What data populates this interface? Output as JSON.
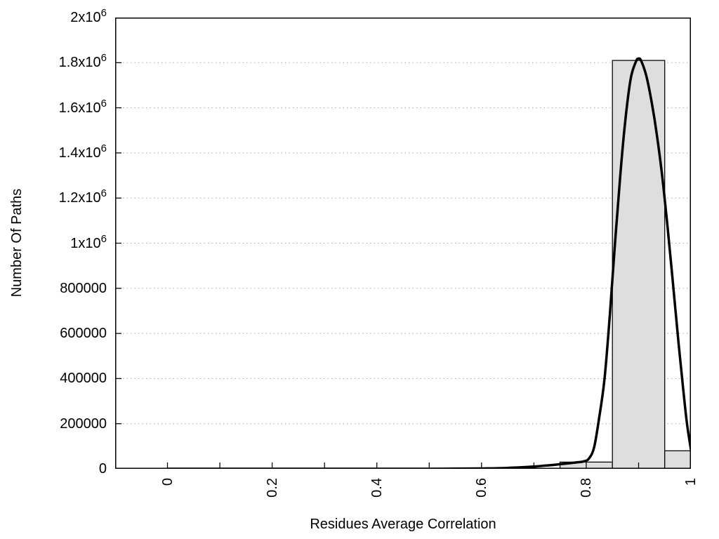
{
  "figure": {
    "background": "#ffffff",
    "title": ""
  },
  "chart_data": {
    "type": "bar",
    "subtype": "histogram-with-fit-line",
    "title": "",
    "xlabel": "Residues Average Correlation",
    "ylabel": "Number Of Paths",
    "xlim": [
      -0.1,
      1.0
    ],
    "ylim": [
      0,
      2000000
    ],
    "grid": "horizontal dotted lines at labeled y ticks",
    "legend": "none",
    "x_ticks": {
      "labeled": [
        {
          "v": 0,
          "label": "0"
        },
        {
          "v": 0.2,
          "label": "0.2"
        },
        {
          "v": 0.4,
          "label": "0.4"
        },
        {
          "v": 0.6,
          "label": "0.6"
        },
        {
          "v": 0.8,
          "label": "0.8"
        },
        {
          "v": 1,
          "label": "1"
        }
      ],
      "minor_step": 0.1,
      "tick_range": [
        0,
        1
      ],
      "label_rotation_deg": -90
    },
    "y_ticks": [
      {
        "v": 0,
        "label": "0"
      },
      {
        "v": 200000,
        "label": "200000"
      },
      {
        "v": 400000,
        "label": "400000"
      },
      {
        "v": 600000,
        "label": "600000"
      },
      {
        "v": 800000,
        "label": "800000"
      },
      {
        "v": 1000000,
        "label": "1x10^6"
      },
      {
        "v": 1200000,
        "label": "1.2x10^6"
      },
      {
        "v": 1400000,
        "label": "1.4x10^6"
      },
      {
        "v": 1600000,
        "label": "1.6x10^6"
      },
      {
        "v": 1800000,
        "label": "1.8x10^6"
      },
      {
        "v": 2000000,
        "label": "2x10^6"
      }
    ],
    "histogram": {
      "bin_width": 0.1,
      "bars": [
        {
          "x0": 0.75,
          "x1": 0.85,
          "center": 0.8,
          "value": 30000
        },
        {
          "x0": 0.85,
          "x1": 0.95,
          "center": 0.9,
          "value": 1810000
        },
        {
          "x0": 0.95,
          "x1": 1.0,
          "center": 1.0,
          "value": 80000
        }
      ]
    },
    "series": [
      {
        "name": "fit-curve",
        "type": "line",
        "color": "#000000",
        "line_width": 3.5,
        "points": [
          [
            0,
            0
          ],
          [
            0.05,
            0
          ],
          [
            0.1,
            0
          ],
          [
            0.15,
            0
          ],
          [
            0.2,
            0
          ],
          [
            0.25,
            0
          ],
          [
            0.3,
            0
          ],
          [
            0.35,
            0
          ],
          [
            0.4,
            0
          ],
          [
            0.45,
            0
          ],
          [
            0.5,
            0
          ],
          [
            0.55,
            500
          ],
          [
            0.6,
            1500
          ],
          [
            0.65,
            4000
          ],
          [
            0.7,
            10000
          ],
          [
            0.72,
            14000
          ],
          [
            0.74,
            18000
          ],
          [
            0.76,
            23000
          ],
          [
            0.78,
            28000
          ],
          [
            0.795,
            33000
          ],
          [
            0.805,
            45000
          ],
          [
            0.815,
            95000
          ],
          [
            0.825,
            230000
          ],
          [
            0.835,
            400000
          ],
          [
            0.845,
            680000
          ],
          [
            0.855,
            1000000
          ],
          [
            0.865,
            1300000
          ],
          [
            0.875,
            1550000
          ],
          [
            0.885,
            1730000
          ],
          [
            0.895,
            1805000
          ],
          [
            0.9,
            1818000
          ],
          [
            0.905,
            1808000
          ],
          [
            0.915,
            1740000
          ],
          [
            0.925,
            1625000
          ],
          [
            0.935,
            1480000
          ],
          [
            0.945,
            1300000
          ],
          [
            0.955,
            1080000
          ],
          [
            0.965,
            840000
          ],
          [
            0.975,
            590000
          ],
          [
            0.985,
            360000
          ],
          [
            0.9925,
            200000
          ],
          [
            1,
            85000
          ]
        ]
      }
    ],
    "colors": {
      "bar_fill": "#dedede",
      "bar_stroke": "#000000",
      "grid_color": "#a8a8a8",
      "axis_color": "#000000",
      "curve_color": "#000000",
      "text_color": "#000000"
    }
  }
}
